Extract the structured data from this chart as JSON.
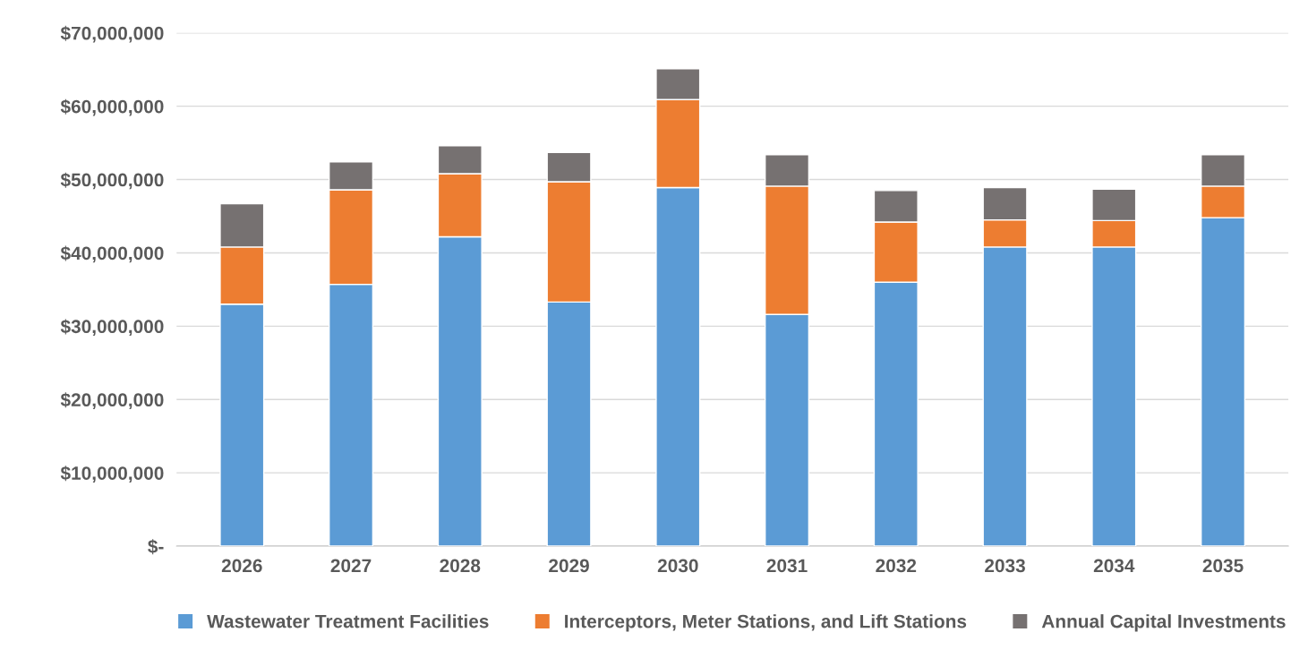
{
  "chart_data": {
    "type": "bar",
    "stacked": true,
    "categories": [
      "2026",
      "2027",
      "2028",
      "2029",
      "2030",
      "2031",
      "2032",
      "2033",
      "2034",
      "2035"
    ],
    "series": [
      {
        "name": "Wastewater Treatment Facilities",
        "color": "#5b9bd5",
        "values": [
          33000000,
          35700000,
          42200000,
          33300000,
          48900000,
          31600000,
          36000000,
          40800000,
          40800000,
          44800000
        ]
      },
      {
        "name": "Interceptors, Meter Stations, and Lift Stations",
        "color": "#ed7d31",
        "values": [
          7800000,
          12900000,
          8600000,
          16400000,
          12000000,
          17500000,
          8200000,
          3700000,
          3600000,
          4300000
        ]
      },
      {
        "name": "Annual Capital Investments",
        "color": "#767171",
        "values": [
          5900000,
          3800000,
          3800000,
          4000000,
          4200000,
          4300000,
          4300000,
          4400000,
          4300000,
          4300000
        ]
      }
    ],
    "ylim": [
      0,
      70000000
    ],
    "yticks": [
      {
        "value": 0,
        "label": "$-"
      },
      {
        "value": 10000000,
        "label": "$10,000,000"
      },
      {
        "value": 20000000,
        "label": "$20,000,000"
      },
      {
        "value": 30000000,
        "label": "$30,000,000"
      },
      {
        "value": 40000000,
        "label": "$40,000,000"
      },
      {
        "value": 50000000,
        "label": "$50,000,000"
      },
      {
        "value": 60000000,
        "label": "$60,000,000"
      },
      {
        "value": 70000000,
        "label": "$70,000,000"
      }
    ],
    "grid": "y",
    "legend": "bottom"
  }
}
